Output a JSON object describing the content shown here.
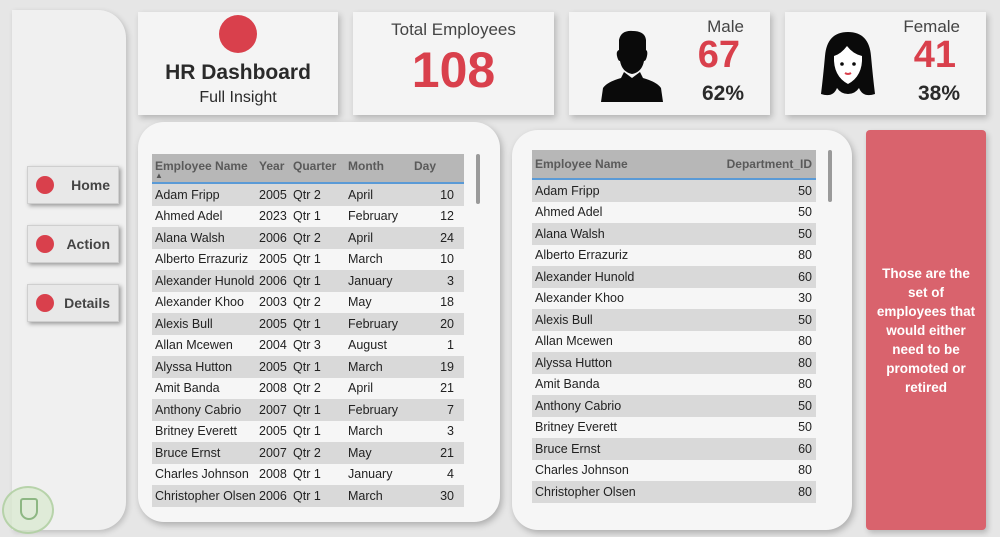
{
  "sidebar": {
    "nav": [
      {
        "label": "Home"
      },
      {
        "label": "Action"
      },
      {
        "label": "Details"
      }
    ]
  },
  "header": {
    "title": "HR Dashboard",
    "subtitle": "Full Insight"
  },
  "kpis": {
    "total": {
      "label": "Total Employees",
      "value": "108"
    },
    "male": {
      "label": "Male",
      "value": "67",
      "percent": "62%",
      "icon": "male-person-icon"
    },
    "female": {
      "label": "Female",
      "value": "41",
      "percent": "38%",
      "icon": "female-person-icon"
    }
  },
  "table1": {
    "columns": [
      "Employee Name",
      "Year",
      "Quarter",
      "Month",
      "Day"
    ],
    "rows": [
      [
        "Adam Fripp",
        "2005",
        "Qtr 2",
        "April",
        "10"
      ],
      [
        "Ahmed Adel",
        "2023",
        "Qtr 1",
        "February",
        "12"
      ],
      [
        "Alana Walsh",
        "2006",
        "Qtr 2",
        "April",
        "24"
      ],
      [
        "Alberto Errazuriz",
        "2005",
        "Qtr 1",
        "March",
        "10"
      ],
      [
        "Alexander Hunold",
        "2006",
        "Qtr 1",
        "January",
        "3"
      ],
      [
        "Alexander Khoo",
        "2003",
        "Qtr 2",
        "May",
        "18"
      ],
      [
        "Alexis Bull",
        "2005",
        "Qtr 1",
        "February",
        "20"
      ],
      [
        "Allan Mcewen",
        "2004",
        "Qtr 3",
        "August",
        "1"
      ],
      [
        "Alyssa Hutton",
        "2005",
        "Qtr 1",
        "March",
        "19"
      ],
      [
        "Amit Banda",
        "2008",
        "Qtr 2",
        "April",
        "21"
      ],
      [
        "Anthony Cabrio",
        "2007",
        "Qtr 1",
        "February",
        "7"
      ],
      [
        "Britney Everett",
        "2005",
        "Qtr 1",
        "March",
        "3"
      ],
      [
        "Bruce Ernst",
        "2007",
        "Qtr 2",
        "May",
        "21"
      ],
      [
        "Charles Johnson",
        "2008",
        "Qtr 1",
        "January",
        "4"
      ],
      [
        "Christopher Olsen",
        "2006",
        "Qtr 1",
        "March",
        "30"
      ]
    ]
  },
  "table2": {
    "columns": [
      "Employee Name",
      "Department_ID"
    ],
    "rows": [
      [
        "Adam Fripp",
        "50"
      ],
      [
        "Ahmed Adel",
        "50"
      ],
      [
        "Alana Walsh",
        "50"
      ],
      [
        "Alberto Errazuriz",
        "80"
      ],
      [
        "Alexander Hunold",
        "60"
      ],
      [
        "Alexander Khoo",
        "30"
      ],
      [
        "Alexis Bull",
        "50"
      ],
      [
        "Allan Mcewen",
        "80"
      ],
      [
        "Alyssa Hutton",
        "80"
      ],
      [
        "Amit Banda",
        "80"
      ],
      [
        "Anthony Cabrio",
        "50"
      ],
      [
        "Britney Everett",
        "50"
      ],
      [
        "Bruce Ernst",
        "60"
      ],
      [
        "Charles Johnson",
        "80"
      ],
      [
        "Christopher Olsen",
        "80"
      ]
    ]
  },
  "note": {
    "text": "Those are the set of employees that would either need to be promoted or retired"
  },
  "colors": {
    "accent": "#d9404c",
    "note_bg": "#d9636d"
  }
}
